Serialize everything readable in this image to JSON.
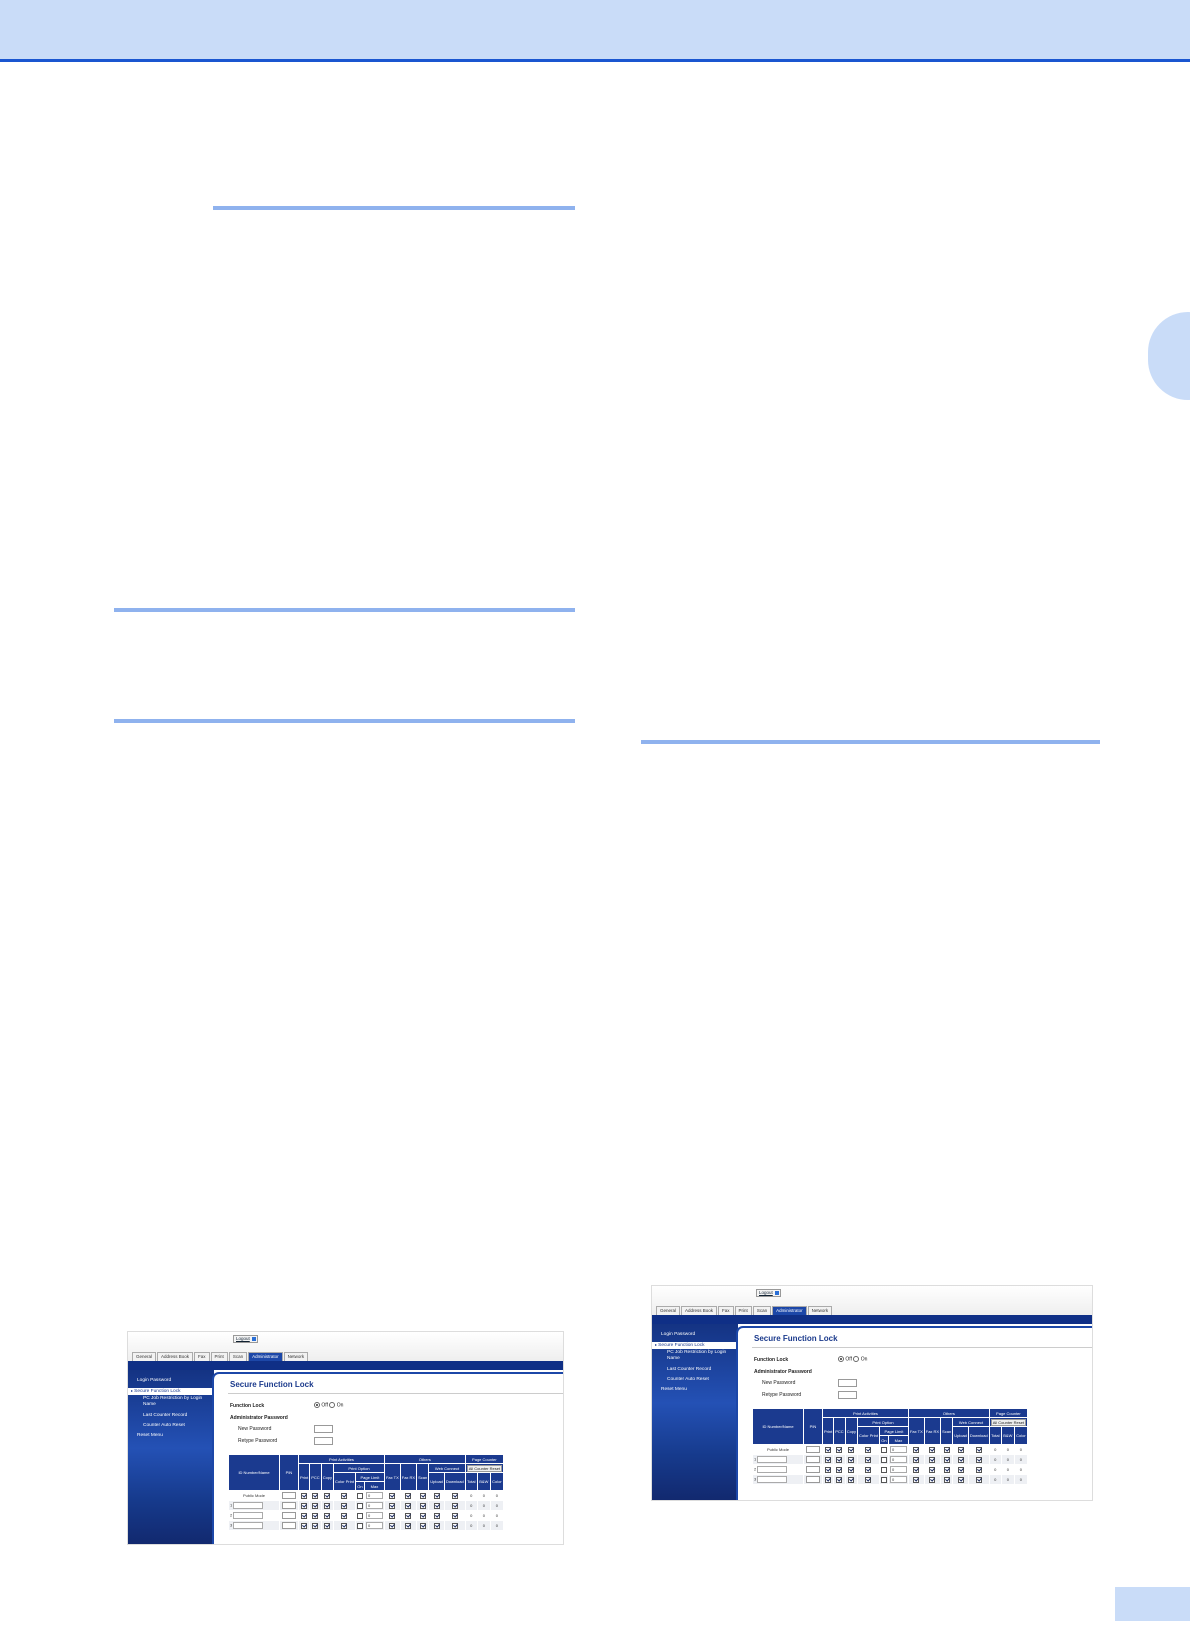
{
  "screenshots": [
    {
      "logout": "Logout",
      "tabs": [
        {
          "label": "General"
        },
        {
          "label": "Address Book"
        },
        {
          "label": "Fax"
        },
        {
          "label": "Print"
        },
        {
          "label": "Scan"
        },
        {
          "label": "Administrator",
          "active": true
        },
        {
          "label": "Network"
        }
      ],
      "menu": [
        {
          "label": "Login Password"
        },
        {
          "label": "Secure Function Lock",
          "selected": true
        },
        {
          "label": "PC Job Restriction by Login Name"
        },
        {
          "label": "Last Counter Record"
        },
        {
          "label": "Counter Auto Reset"
        },
        {
          "label": "Reset Menu"
        }
      ],
      "heading": "Secure Function Lock",
      "function_lock": {
        "label": "Function Lock",
        "options": [
          "Off",
          "On"
        ]
      },
      "admin_password": {
        "label": "Administrator Password",
        "fields": [
          "New Password",
          "Retype Password"
        ]
      },
      "table": {
        "header": {
          "id_name": "ID Number/Name",
          "pin": "PIN",
          "print_activities": "Print Activities",
          "print": "Print",
          "pcc": "PCC",
          "copy": "Copy",
          "print_option": "Print Option",
          "color_print": "Color Print",
          "page_limit": "Page Limit",
          "on": "On",
          "max": "Max",
          "others": "Others",
          "fax_tx": "Fax TX",
          "fax_rx": "Fax RX",
          "scan": "Scan",
          "web_connect": "Web Connect",
          "upload": "Upload",
          "download": "Download",
          "page_counter": "Page Counter",
          "all_counter_reset": "All Counter Reset",
          "total": "Total",
          "bw": "B&W",
          "color": "Color"
        },
        "rows": [
          {
            "name": "Public Mode",
            "max": 0,
            "counters": [
              0,
              0,
              0
            ]
          },
          {
            "name": "1",
            "max": 0,
            "counters": [
              0,
              0,
              0
            ]
          },
          {
            "name": "2",
            "max": 0,
            "counters": [
              0,
              0,
              0
            ]
          },
          {
            "name": "3",
            "max": 0,
            "counters": [
              0,
              0,
              0
            ]
          }
        ]
      }
    },
    {
      "logout": "Logout",
      "tabs": [
        {
          "label": "General"
        },
        {
          "label": "Address Book"
        },
        {
          "label": "Fax"
        },
        {
          "label": "Print"
        },
        {
          "label": "Scan"
        },
        {
          "label": "Administrator",
          "active": true
        },
        {
          "label": "Network"
        }
      ],
      "menu": [
        {
          "label": "Login Password"
        },
        {
          "label": "Secure Function Lock",
          "selected": true
        },
        {
          "label": "PC Job Restriction by Login Name"
        },
        {
          "label": "Last Counter Record"
        },
        {
          "label": "Counter Auto Reset"
        },
        {
          "label": "Reset Menu"
        }
      ],
      "heading": "Secure Function Lock",
      "function_lock": {
        "label": "Function Lock",
        "options": [
          "Off",
          "On"
        ]
      },
      "admin_password": {
        "label": "Administrator Password",
        "fields": [
          "New Password",
          "Retype Password"
        ]
      },
      "table": {
        "header": {
          "id_name": "ID Number/Name",
          "pin": "PIN",
          "print_activities": "Print Activities",
          "print": "Print",
          "pcc": "PCC",
          "copy": "Copy",
          "print_option": "Print Option",
          "color_print": "Color Print",
          "page_limit": "Page Limit",
          "on": "On",
          "max": "Max",
          "others": "Others",
          "fax_tx": "Fax TX",
          "fax_rx": "Fax RX",
          "scan": "Scan",
          "web_connect": "Web Connect",
          "upload": "Upload",
          "download": "Download",
          "page_counter": "Page Counter",
          "all_counter_reset": "All Counter Reset",
          "total": "Total",
          "bw": "B&W",
          "color": "Color"
        },
        "rows": [
          {
            "name": "Public Mode",
            "max": 0,
            "counters": [
              0,
              0,
              0
            ]
          },
          {
            "name": "1",
            "max": 0,
            "counters": [
              0,
              0,
              0
            ]
          },
          {
            "name": "2",
            "max": 0,
            "counters": [
              0,
              0,
              0
            ]
          },
          {
            "name": "3",
            "max": 0,
            "counters": [
              0,
              0,
              0
            ]
          }
        ]
      }
    }
  ]
}
